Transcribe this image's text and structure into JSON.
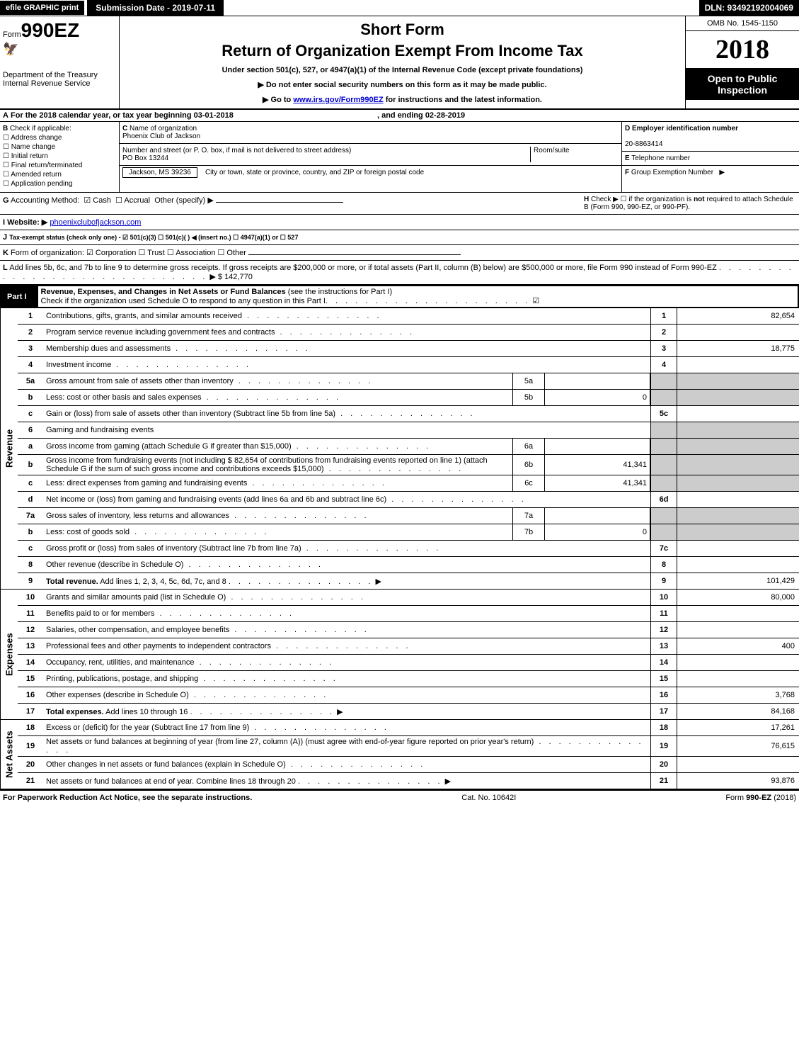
{
  "topbar": {
    "efile_btn": "efile GRAPHIC print",
    "submission": "Submission Date - 2019-07-11",
    "dln": "DLN: 93492192004069"
  },
  "header": {
    "form_prefix": "Form",
    "form_number": "990EZ",
    "dept": "Department of the Treasury",
    "irs": "Internal Revenue Service",
    "short_form": "Short Form",
    "return_title": "Return of Organization Exempt From Income Tax",
    "under_section": "Under section 501(c), 527, or 4947(a)(1) of the Internal Revenue Code (except private foundations)",
    "do_not_enter": "▶ Do not enter social security numbers on this form as it may be made public.",
    "goto_prefix": "▶ Go to ",
    "goto_link": "www.irs.gov/Form990EZ",
    "goto_suffix": " for instructions and the latest information.",
    "omb": "OMB No. 1545-1150",
    "year": "2018",
    "open_public": "Open to Public Inspection"
  },
  "section_a": {
    "prefix": "A",
    "text": "For the 2018 calendar year, or tax year beginning ",
    "begin": "03-01-2018",
    "mid": ", and ending ",
    "end": "02-28-2019"
  },
  "box_b": {
    "label": "B",
    "title": "Check if applicable:",
    "items": [
      "Address change",
      "Name change",
      "Initial return",
      "Final return/terminated",
      "Amended return",
      "Application pending"
    ]
  },
  "box_c": {
    "label": "C",
    "title": "Name of organization",
    "value": "Phoenix Club of Jackson",
    "addr_label": "Number and street (or P. O. box, if mail is not delivered to street address)",
    "addr_value": "PO Box 13244",
    "room_label": "Room/suite",
    "city_line": "Jackson, MS  39236",
    "city_instr": "City or town, state or province, country, and ZIP or foreign postal code"
  },
  "box_d": {
    "label": "D",
    "title": "Employer identification number",
    "value": "20-8863414"
  },
  "box_e": {
    "label": "E",
    "title": "Telephone number",
    "value": ""
  },
  "box_f": {
    "label": "F",
    "title": "Group Exemption Number",
    "arrow": "▶"
  },
  "row_g": {
    "label": "G",
    "text": "Accounting Method:",
    "cash": "Cash",
    "accrual": "Accrual",
    "other": "Other (specify) ▶"
  },
  "row_h": {
    "label": "H",
    "text1": "Check ▶ ☐ if the organization is ",
    "not": "not",
    "text2": " required to attach Schedule B (Form 990, 990-EZ, or 990-PF)."
  },
  "row_i": {
    "label": "I Website: ▶",
    "value": "phoenixclubofjackson.com"
  },
  "row_j": {
    "label": "J",
    "text": "Tax-exempt status (check only one) - ☑ 501(c)(3) ☐ 501(c)( ) ◀ (insert no.) ☐ 4947(a)(1) or ☐ 527"
  },
  "row_k": {
    "label": "K",
    "text": "Form of organization: ☑ Corporation ☐ Trust ☐ Association ☐ Other"
  },
  "row_l": {
    "label": "L",
    "text": "Add lines 5b, 6c, and 7b to line 9 to determine gross receipts. If gross receipts are $200,000 or more, or if total assets (Part II, column (B) below) are $500,000 or more, file Form 990 instead of Form 990-EZ",
    "amount": "▶ $ 142,770"
  },
  "part1": {
    "label": "Part I",
    "title": "Revenue, Expenses, and Changes in Net Assets or Fund Balances",
    "subtitle": " (see the instructions for Part I)",
    "check_text": "Check if the organization used Schedule O to respond to any question in this Part I"
  },
  "revenue": {
    "side": "Revenue",
    "rows": [
      {
        "n": "1",
        "desc": "Contributions, gifts, grants, and similar amounts received",
        "num": "1",
        "val": "82,654"
      },
      {
        "n": "2",
        "desc": "Program service revenue including government fees and contracts",
        "num": "2",
        "val": ""
      },
      {
        "n": "3",
        "desc": "Membership dues and assessments",
        "num": "3",
        "val": "18,775"
      },
      {
        "n": "4",
        "desc": "Investment income",
        "num": "4",
        "val": ""
      },
      {
        "n": "5a",
        "desc": "Gross amount from sale of assets other than inventory",
        "sub": "5a",
        "subval": ""
      },
      {
        "n": "b",
        "desc": "Less: cost or other basis and sales expenses",
        "sub": "5b",
        "subval": "0"
      },
      {
        "n": "c",
        "desc": "Gain or (loss) from sale of assets other than inventory (Subtract line 5b from line 5a)",
        "num": "5c",
        "val": ""
      },
      {
        "n": "6",
        "desc": "Gaming and fundraising events"
      },
      {
        "n": "a",
        "desc": "Gross income from gaming (attach Schedule G if greater than $15,000)",
        "sub": "6a",
        "subval": ""
      },
      {
        "n": "b",
        "desc": "Gross income from fundraising events (not including $  82,654         of contributions from fundraising events reported on line 1) (attach Schedule G if the sum of such gross income and contributions exceeds $15,000)",
        "sub": "6b",
        "subval": "41,341"
      },
      {
        "n": "c",
        "desc": "Less: direct expenses from gaming and fundraising events",
        "sub": "6c",
        "subval": "41,341"
      },
      {
        "n": "d",
        "desc": "Net income or (loss) from gaming and fundraising events (add lines 6a and 6b and subtract line 6c)",
        "num": "6d",
        "val": ""
      },
      {
        "n": "7a",
        "desc": "Gross sales of inventory, less returns and allowances",
        "sub": "7a",
        "subval": ""
      },
      {
        "n": "b",
        "desc": "Less: cost of goods sold",
        "sub": "7b",
        "subval": "0"
      },
      {
        "n": "c",
        "desc": "Gross profit or (loss) from sales of inventory (Subtract line 7b from line 7a)",
        "num": "7c",
        "val": ""
      },
      {
        "n": "8",
        "desc": "Other revenue (describe in Schedule O)",
        "num": "8",
        "val": ""
      },
      {
        "n": "9",
        "desc": "Total revenue. Add lines 1, 2, 3, 4, 5c, 6d, 7c, and 8",
        "num": "9",
        "val": "101,429",
        "bold": true,
        "arrow": true
      }
    ]
  },
  "expenses": {
    "side": "Expenses",
    "rows": [
      {
        "n": "10",
        "desc": "Grants and similar amounts paid (list in Schedule O)",
        "num": "10",
        "val": "80,000"
      },
      {
        "n": "11",
        "desc": "Benefits paid to or for members",
        "num": "11",
        "val": ""
      },
      {
        "n": "12",
        "desc": "Salaries, other compensation, and employee benefits",
        "num": "12",
        "val": ""
      },
      {
        "n": "13",
        "desc": "Professional fees and other payments to independent contractors",
        "num": "13",
        "val": "400"
      },
      {
        "n": "14",
        "desc": "Occupancy, rent, utilities, and maintenance",
        "num": "14",
        "val": ""
      },
      {
        "n": "15",
        "desc": "Printing, publications, postage, and shipping",
        "num": "15",
        "val": ""
      },
      {
        "n": "16",
        "desc": "Other expenses (describe in Schedule O)",
        "num": "16",
        "val": "3,768"
      },
      {
        "n": "17",
        "desc": "Total expenses. Add lines 10 through 16",
        "num": "17",
        "val": "84,168",
        "bold": true,
        "arrow": true
      }
    ]
  },
  "netassets": {
    "side": "Net Assets",
    "rows": [
      {
        "n": "18",
        "desc": "Excess or (deficit) for the year (Subtract line 17 from line 9)",
        "num": "18",
        "val": "17,261"
      },
      {
        "n": "19",
        "desc": "Net assets or fund balances at beginning of year (from line 27, column (A)) (must agree with end-of-year figure reported on prior year's return)",
        "num": "19",
        "val": "76,615"
      },
      {
        "n": "20",
        "desc": "Other changes in net assets or fund balances (explain in Schedule O)",
        "num": "20",
        "val": ""
      },
      {
        "n": "21",
        "desc": "Net assets or fund balances at end of year. Combine lines 18 through 20",
        "num": "21",
        "val": "93,876",
        "arrow": true
      }
    ]
  },
  "footer": {
    "left": "For Paperwork Reduction Act Notice, see the separate instructions.",
    "mid": "Cat. No. 10642I",
    "right": "Form 990-EZ (2018)"
  }
}
